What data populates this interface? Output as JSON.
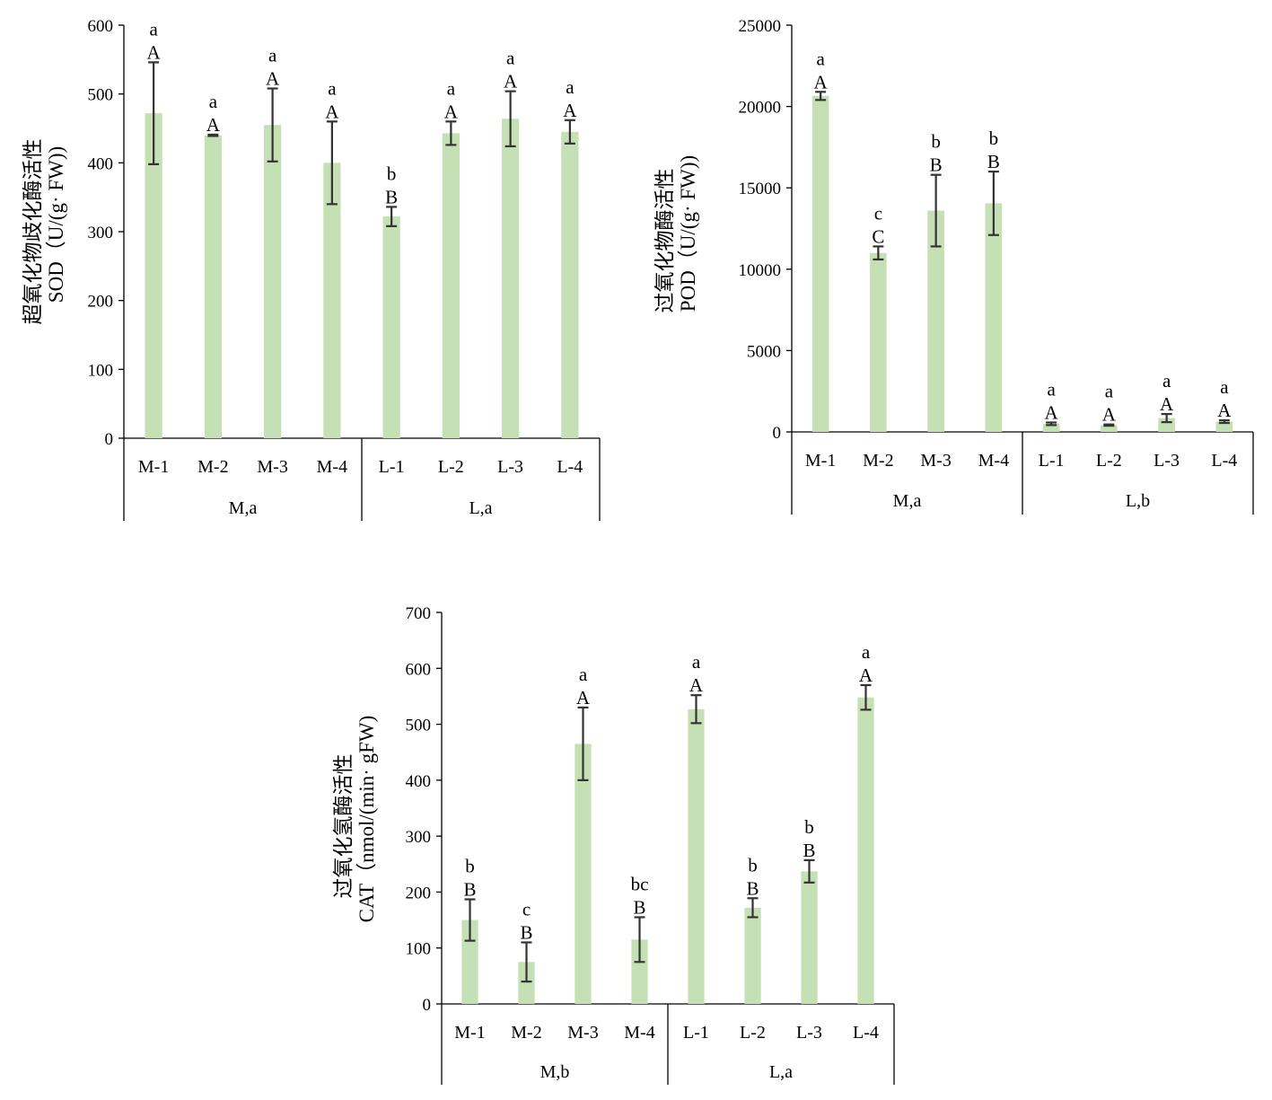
{
  "colors": {
    "bar": "#c5e0b4",
    "axis": "#000000",
    "error": "#333333"
  },
  "chart_data": [
    {
      "type": "bar",
      "ylabel_cn": "超氧化物歧化酶活性",
      "ylabel_en": "SOD（U/(g· FW))",
      "ylim": [
        0,
        600
      ],
      "yticks": [
        0,
        100,
        200,
        300,
        400,
        500,
        600
      ],
      "categories": [
        "M-1",
        "M-2",
        "M-3",
        "M-4",
        "L-1",
        "L-2",
        "L-3",
        "L-4"
      ],
      "groups": [
        {
          "label": "M,a",
          "count": 4
        },
        {
          "label": "L,a",
          "count": 4
        }
      ],
      "values": [
        472,
        440,
        455,
        400,
        322,
        443,
        464,
        445
      ],
      "errors": [
        74,
        1,
        53,
        60,
        14,
        17,
        40,
        17
      ],
      "labels_upper": [
        "A",
        "A",
        "A",
        "A",
        "B",
        "A",
        "A",
        "A"
      ],
      "labels_lower": [
        "a",
        "a",
        "a",
        "a",
        "b",
        "a",
        "a",
        "a"
      ]
    },
    {
      "type": "bar",
      "ylabel_cn": "过氧化物酶活性",
      "ylabel_en": "POD（U/(g· FW))",
      "ylim": [
        0,
        25000
      ],
      "yticks": [
        0,
        5000,
        10000,
        15000,
        20000,
        25000
      ],
      "categories": [
        "M-1",
        "M-2",
        "M-3",
        "M-4",
        "L-1",
        "L-2",
        "L-3",
        "L-4"
      ],
      "groups": [
        {
          "label": "M,a",
          "count": 4
        },
        {
          "label": "L,b",
          "count": 4
        }
      ],
      "values": [
        20650,
        11000,
        13600,
        14050,
        500,
        420,
        850,
        630
      ],
      "errors": [
        250,
        400,
        2200,
        1950,
        80,
        40,
        250,
        80
      ],
      "labels_upper": [
        "A",
        "C",
        "B",
        "B",
        "A",
        "A",
        "A",
        "A"
      ],
      "labels_lower": [
        "a",
        "c",
        "b",
        "b",
        "a",
        "a",
        "a",
        "a"
      ]
    },
    {
      "type": "bar",
      "ylabel_cn": "过氧化氢酶活性",
      "ylabel_en": "CAT（nmol/(min· gFW)",
      "ylim": [
        0,
        700
      ],
      "yticks": [
        0,
        100,
        200,
        300,
        400,
        500,
        600,
        700
      ],
      "categories": [
        "M-1",
        "M-2",
        "M-3",
        "M-4",
        "L-1",
        "L-2",
        "L-3",
        "L-4"
      ],
      "groups": [
        {
          "label": "M,b",
          "count": 4
        },
        {
          "label": "L,a",
          "count": 4
        }
      ],
      "values": [
        150,
        75,
        465,
        115,
        527,
        172,
        237,
        548
      ],
      "errors": [
        37,
        35,
        65,
        40,
        25,
        17,
        20,
        22
      ],
      "labels_upper": [
        "B",
        "B",
        "A",
        "B",
        "A",
        "B",
        "B",
        "A"
      ],
      "labels_lower": [
        "b",
        "c",
        "a",
        "bc",
        "a",
        "b",
        "b",
        "a"
      ]
    }
  ]
}
